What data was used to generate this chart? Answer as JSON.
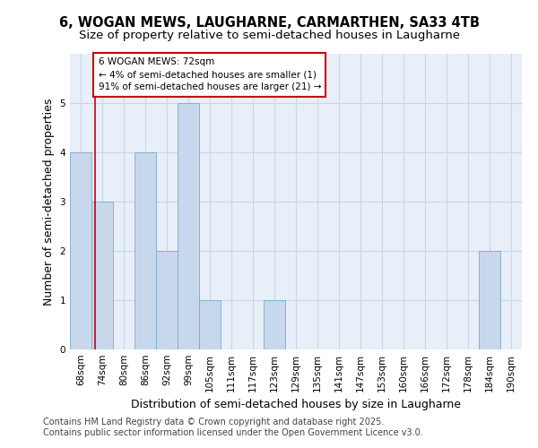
{
  "title_line1": "6, WOGAN MEWS, LAUGHARNE, CARMARTHEN, SA33 4TB",
  "title_line2": "Size of property relative to semi-detached houses in Laugharne",
  "xlabel": "Distribution of semi-detached houses by size in Laugharne",
  "ylabel": "Number of semi-detached properties",
  "categories": [
    "68sqm",
    "74sqm",
    "80sqm",
    "86sqm",
    "92sqm",
    "99sqm",
    "105sqm",
    "111sqm",
    "117sqm",
    "123sqm",
    "129sqm",
    "135sqm",
    "141sqm",
    "147sqm",
    "153sqm",
    "160sqm",
    "166sqm",
    "172sqm",
    "178sqm",
    "184sqm",
    "190sqm"
  ],
  "values": [
    4,
    3,
    0,
    4,
    2,
    5,
    1,
    0,
    0,
    1,
    0,
    0,
    0,
    0,
    0,
    0,
    0,
    0,
    0,
    2,
    0
  ],
  "bar_color": "#c8d8ec",
  "bar_edge_color": "#7aaac8",
  "bar_edge_width": 0.6,
  "grid_color": "#c8d8e8",
  "background_color": "#e8eff8",
  "annotation_box_text": "6 WOGAN MEWS: 72sqm\n← 4% of semi-detached houses are smaller (1)\n91% of semi-detached houses are larger (21) →",
  "annotation_box_color": "#ffffff",
  "annotation_box_edge_color": "#cc0000",
  "vline_color": "#cc0000",
  "ylim": [
    0,
    6
  ],
  "yticks": [
    0,
    1,
    2,
    3,
    4,
    5,
    6
  ],
  "footer_line1": "Contains HM Land Registry data © Crown copyright and database right 2025.",
  "footer_line2": "Contains public sector information licensed under the Open Government Licence v3.0.",
  "title_fontsize": 10.5,
  "subtitle_fontsize": 9.5,
  "axis_label_fontsize": 9,
  "tick_fontsize": 7.5,
  "footer_fontsize": 7,
  "annot_fontsize": 7.5
}
